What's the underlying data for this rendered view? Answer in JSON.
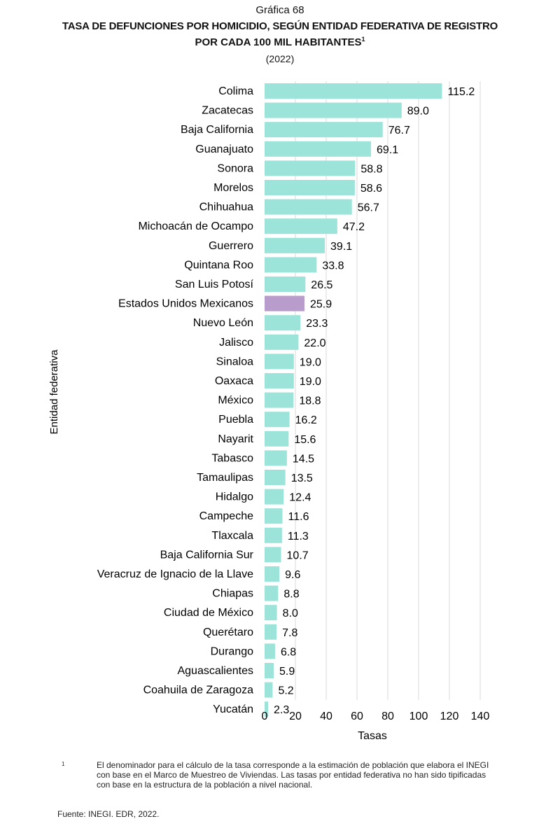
{
  "chart_data": {
    "type": "bar",
    "orientation": "horizontal",
    "subtitle": "Gráfica 68",
    "title": "TASA DE DEFUNCIONES POR HOMICIDIO, SEGÚN ENTIDAD FEDERATIVA DE REGISTRO",
    "title_line2": "POR CADA 100 MIL HABITANTES",
    "title_superscript": "1",
    "year": "(2022)",
    "xlabel": "Tasas",
    "ylabel": "Entidad federativa",
    "xlim": [
      0,
      140
    ],
    "xticks": [
      "0",
      "20",
      "40",
      "60",
      "80",
      "100",
      "120",
      "140"
    ],
    "grid": true,
    "categories": [
      "Colima",
      "Zacatecas",
      "Baja California",
      "Guanajuato",
      "Sonora",
      "Morelos",
      "Chihuahua",
      "Michoacán de Ocampo",
      "Guerrero",
      "Quintana Roo",
      "San Luis Potosí",
      "Estados Unidos Mexicanos",
      "Nuevo León",
      "Jalisco",
      "Sinaloa",
      "Oaxaca",
      "México",
      "Puebla",
      "Nayarit",
      "Tabasco",
      "Tamaulipas",
      "Hidalgo",
      "Campeche",
      "Tlaxcala",
      "Baja California Sur",
      "Veracruz de Ignacio de la Llave",
      "Chiapas",
      "Ciudad de México",
      "Querétaro",
      "Durango",
      "Aguascalientes",
      "Coahuila de Zaragoza",
      "Yucatán"
    ],
    "values": [
      115.2,
      89.0,
      76.7,
      69.1,
      58.8,
      58.6,
      56.7,
      47.2,
      39.1,
      33.8,
      26.5,
      25.9,
      23.3,
      22.0,
      19.0,
      19.0,
      18.8,
      16.2,
      15.6,
      14.5,
      13.5,
      12.4,
      11.6,
      11.3,
      10.7,
      9.6,
      8.8,
      8.0,
      7.8,
      6.8,
      5.9,
      5.2,
      2.3
    ],
    "highlight_category": "Estados Unidos Mexicanos",
    "colors": {
      "bar": "#9ce3d9",
      "highlight": "#b79ccc",
      "grid": "#d9d9d9"
    }
  },
  "footnote": {
    "mark": "1",
    "text": "El denominador para el cálculo de la tasa corresponde a la estimación de población que elabora el INEGI con base en el Marco de Muestreo de Viviendas. Las tasas por entidad federativa no han sido tipificadas con base en la estructura de la población a nivel nacional."
  },
  "source": "Fuente: INEGI. EDR, 2022."
}
